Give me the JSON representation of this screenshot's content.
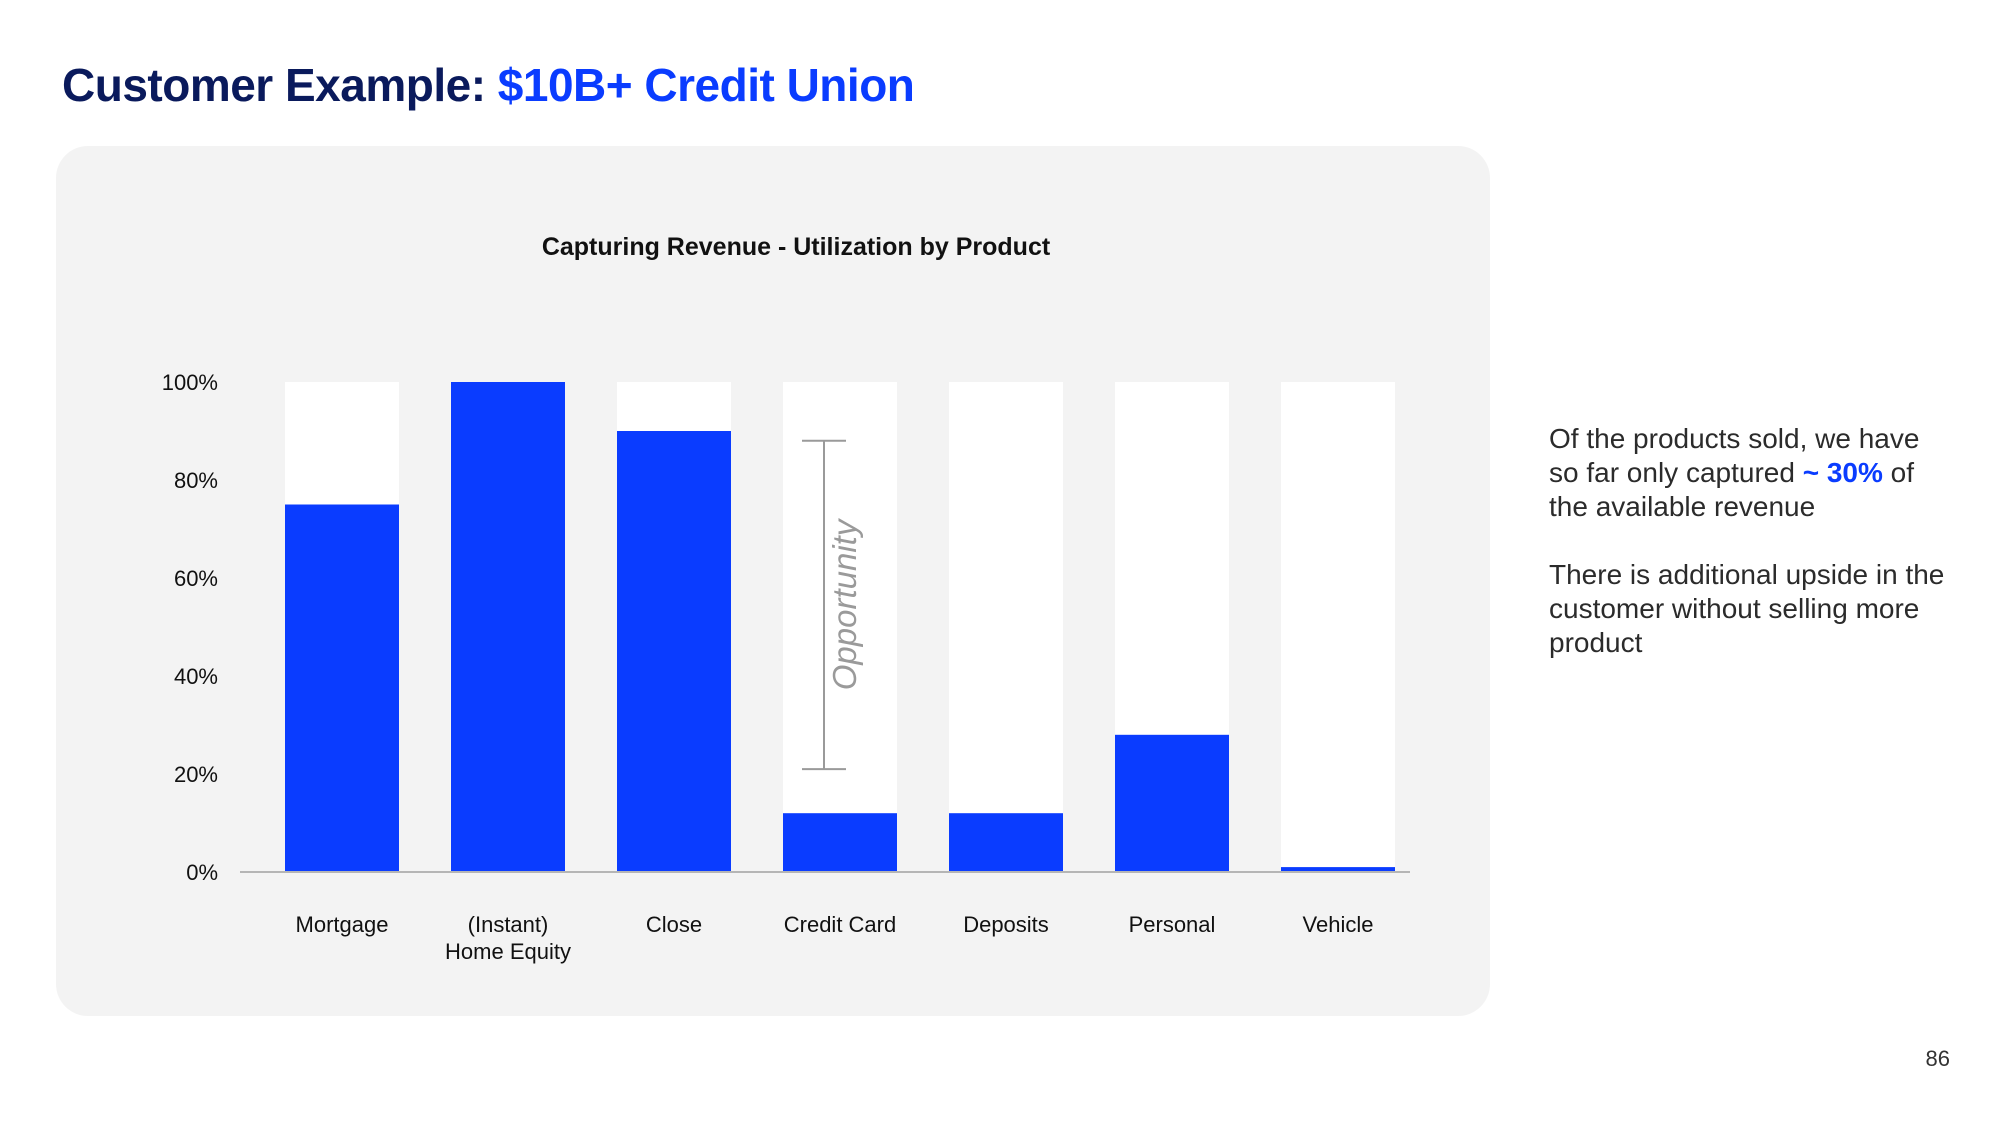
{
  "slide": {
    "title_prefix": "Customer Example:",
    "title_accent": "$10B+ Credit Union",
    "page_number": "86"
  },
  "side_text": {
    "p1_before": "Of the products sold, we have so far only captured",
    "p1_highlight": "~ 30%",
    "p1_after": "of the available revenue",
    "p2": "There is additional upside in the customer without selling more product"
  },
  "colors": {
    "bar_fill": "#0a3cff",
    "bar_track": "#ffffff",
    "panel_background": "#f3f3f3",
    "title_dark": "#0a1a5c",
    "accent": "#0a3cff"
  },
  "chart_data": {
    "type": "bar",
    "title": "Capturing Revenue - Utilization by Product",
    "categories": [
      [
        "Mortgage"
      ],
      [
        "(Instant)",
        "Home Equity"
      ],
      [
        "Close"
      ],
      [
        "Credit Card"
      ],
      [
        "Deposits"
      ],
      [
        "Personal"
      ],
      [
        "Vehicle"
      ]
    ],
    "values": [
      75,
      100,
      90,
      12,
      12,
      28,
      1
    ],
    "unit": "%",
    "ylim": [
      0,
      100
    ],
    "yticks": [
      0,
      20,
      40,
      60,
      80,
      100
    ],
    "ytick_labels": [
      "0%",
      "20%",
      "40%",
      "60%",
      "80%",
      "100%"
    ],
    "annotation": {
      "text": "Opportunity",
      "category_index": 3,
      "range": [
        21,
        88
      ]
    },
    "grid": false,
    "legend": "none"
  }
}
